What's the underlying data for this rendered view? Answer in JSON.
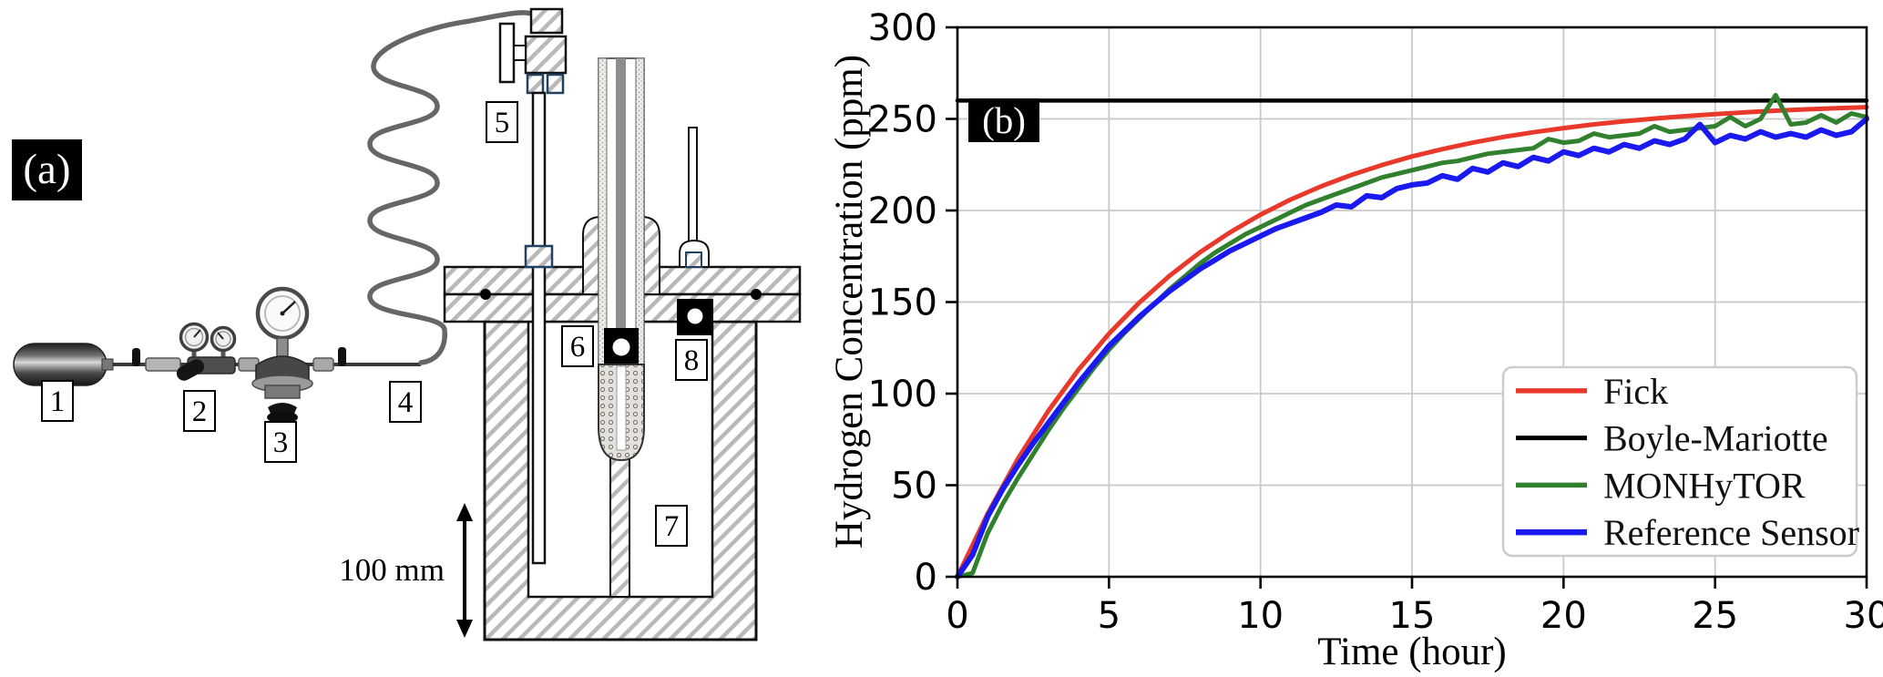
{
  "figure": {
    "panel_a_caption": "(a)",
    "panel_b_caption": "(b)"
  },
  "diagram": {
    "labels": [
      "1",
      "2",
      "3",
      "4",
      "5",
      "6",
      "7",
      "8"
    ],
    "scale_label": "100 mm"
  },
  "chart_data": {
    "type": "line",
    "title": "",
    "xlabel": "Time (hour)",
    "ylabel": "Hydrogen Concentration (ppm)",
    "xlim": [
      0,
      30
    ],
    "ylim": [
      0,
      300
    ],
    "xticks": [
      0,
      5,
      10,
      15,
      20,
      25,
      30
    ],
    "yticks": [
      0,
      50,
      100,
      150,
      200,
      250,
      300
    ],
    "grid": true,
    "grid_color": "#c9c9c9",
    "legend_position": "lower right",
    "series": [
      {
        "name": "Fick",
        "color": "#e8392b",
        "line_width": 5,
        "x": [
          0,
          1,
          2,
          3,
          4,
          5,
          6,
          7,
          8,
          9,
          10,
          11,
          12,
          13,
          14,
          15,
          16,
          17,
          18,
          19,
          20,
          21,
          22,
          23,
          24,
          25,
          26,
          27,
          28,
          29,
          30
        ],
        "y": [
          0,
          34.6,
          64.6,
          90.6,
          113.2,
          132.7,
          149.7,
          164.4,
          177.1,
          188.1,
          197.7,
          206.0,
          213.2,
          219.4,
          224.8,
          229.5,
          233.5,
          237.0,
          240.1,
          242.7,
          245.0,
          247.0,
          248.7,
          250.2,
          251.5,
          252.6,
          253.6,
          254.5,
          255.2,
          255.8,
          256.4
        ]
      },
      {
        "name": "Boyle-Mariotte",
        "color": "#000000",
        "line_width": 4.5,
        "x": [
          0,
          30
        ],
        "y": [
          260,
          260
        ]
      },
      {
        "name": "MONHyTOR",
        "color": "#31802e",
        "line_width": 5,
        "x": [
          0,
          0.5,
          1,
          1.5,
          2,
          2.5,
          3,
          3.5,
          4,
          4.5,
          5,
          5.5,
          6,
          6.5,
          7,
          7.5,
          8,
          8.5,
          9,
          9.5,
          10,
          10.5,
          11,
          11.5,
          12,
          12.5,
          13,
          13.5,
          14,
          14.5,
          15,
          15.5,
          16,
          16.5,
          17,
          17.5,
          18,
          18.5,
          19,
          19.5,
          20,
          20.5,
          21,
          21.5,
          22,
          22.5,
          23,
          23.5,
          24,
          24.5,
          25,
          25.5,
          26,
          26.5,
          27,
          27.5,
          28,
          28.5,
          29,
          29.5,
          30
        ],
        "y": [
          0,
          2,
          24,
          40,
          54,
          67,
          80,
          92,
          103,
          114,
          124,
          133,
          141,
          149,
          157,
          164,
          171,
          177,
          182,
          187,
          191,
          195,
          199,
          203,
          206,
          209,
          212,
          215,
          218,
          220,
          222,
          224,
          226,
          227,
          229,
          231,
          232,
          233,
          234,
          239,
          237,
          238,
          242,
          240,
          241,
          242,
          246,
          243,
          244,
          245,
          246,
          251,
          246,
          250,
          263,
          247,
          248,
          252,
          248,
          253,
          251
        ]
      },
      {
        "name": "Reference Sensor",
        "color": "#1a1af0",
        "line_width": 6,
        "x": [
          0,
          0.5,
          1,
          1.5,
          2,
          2.5,
          3,
          3.5,
          4,
          4.5,
          5,
          5.5,
          6,
          6.5,
          7,
          7.5,
          8,
          8.5,
          9,
          9.5,
          10,
          10.5,
          11,
          11.5,
          12,
          12.5,
          13,
          13.5,
          14,
          14.5,
          15,
          15.5,
          16,
          16.5,
          17,
          17.5,
          18,
          18.5,
          19,
          19.5,
          20,
          20.5,
          21,
          21.5,
          22,
          22.5,
          23,
          23.5,
          24,
          24.5,
          25,
          25.5,
          26,
          26.5,
          27,
          27.5,
          28,
          28.5,
          29,
          29.5,
          30
        ],
        "y": [
          0,
          12,
          33,
          48,
          61,
          73,
          84,
          95,
          106,
          116,
          126,
          134,
          142,
          149,
          156,
          162,
          168,
          173,
          178,
          182,
          186,
          190,
          193,
          196,
          199,
          203,
          202,
          208,
          207,
          212,
          214,
          215,
          219,
          217,
          223,
          221,
          226,
          224,
          229,
          227,
          232,
          230,
          234,
          232,
          236,
          234,
          238,
          236,
          239,
          247,
          237,
          241,
          239,
          243,
          240,
          242,
          240,
          244,
          241,
          243,
          250
        ]
      }
    ]
  }
}
